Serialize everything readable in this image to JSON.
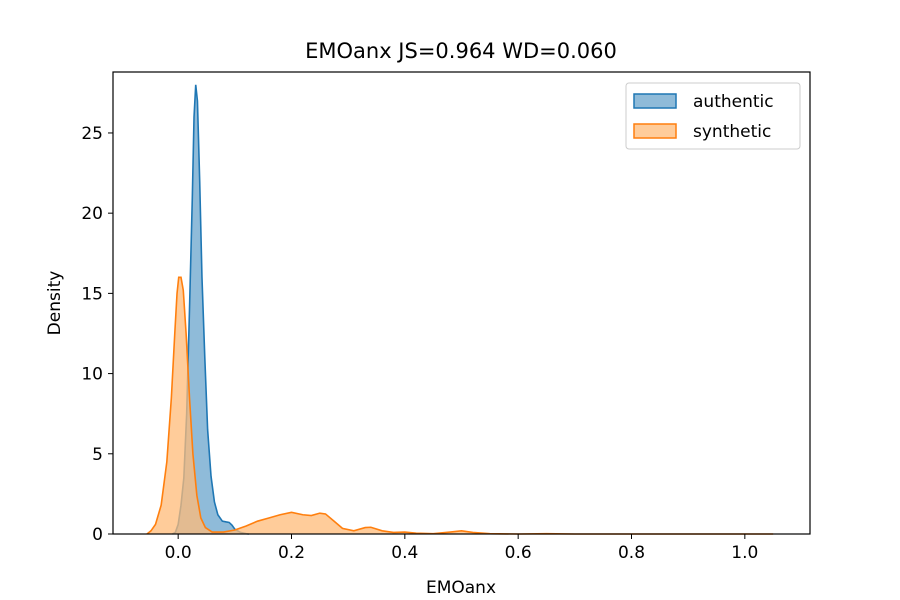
{
  "chart_data": {
    "type": "area",
    "title": "EMOanx  JS=0.964  WD=0.060",
    "xlabel": "EMOanx",
    "ylabel": "Density",
    "xlim": [
      -0.115,
      1.115
    ],
    "ylim": [
      0,
      28.8
    ],
    "xticks": [
      0.0,
      0.2,
      0.4,
      0.6,
      0.8,
      1.0
    ],
    "xtick_labels": [
      "0.0",
      "0.2",
      "0.4",
      "0.6",
      "0.8",
      "1.0"
    ],
    "yticks": [
      0,
      5,
      10,
      15,
      20,
      25
    ],
    "ytick_labels": [
      "0",
      "5",
      "10",
      "15",
      "20",
      "25"
    ],
    "grid": false,
    "legend_position": "top-right",
    "series": [
      {
        "name": "authentic",
        "color": "#1f77b4",
        "fill": "#1f77b4",
        "fill_opacity": 0.5,
        "points": [
          [
            -0.01,
            0
          ],
          [
            -0.005,
            0.1
          ],
          [
            0.0,
            0.6
          ],
          [
            0.005,
            1.8
          ],
          [
            0.01,
            3.5
          ],
          [
            0.015,
            7.5
          ],
          [
            0.02,
            14.0
          ],
          [
            0.025,
            21.0
          ],
          [
            0.028,
            26.0
          ],
          [
            0.031,
            28.0
          ],
          [
            0.034,
            27.0
          ],
          [
            0.038,
            22.0
          ],
          [
            0.042,
            16.0
          ],
          [
            0.047,
            11.0
          ],
          [
            0.052,
            6.5
          ],
          [
            0.058,
            3.6
          ],
          [
            0.064,
            2.0
          ],
          [
            0.07,
            1.2
          ],
          [
            0.078,
            0.8
          ],
          [
            0.085,
            0.75
          ],
          [
            0.09,
            0.72
          ],
          [
            0.095,
            0.55
          ],
          [
            0.1,
            0.3
          ],
          [
            0.11,
            0.1
          ],
          [
            0.12,
            0.02
          ],
          [
            0.125,
            0
          ]
        ]
      },
      {
        "name": "synthetic",
        "color": "#ff7f0e",
        "fill": "#ffbb78",
        "fill_opacity": 0.75,
        "points": [
          [
            -0.055,
            0
          ],
          [
            -0.048,
            0.2
          ],
          [
            -0.04,
            0.6
          ],
          [
            -0.03,
            1.8
          ],
          [
            -0.02,
            4.5
          ],
          [
            -0.012,
            8.5
          ],
          [
            -0.006,
            12.5
          ],
          [
            -0.002,
            15.0
          ],
          [
            0.001,
            16.0
          ],
          [
            0.005,
            16.0
          ],
          [
            0.009,
            15.2
          ],
          [
            0.014,
            12.5
          ],
          [
            0.02,
            8.5
          ],
          [
            0.026,
            5.0
          ],
          [
            0.033,
            2.4
          ],
          [
            0.04,
            1.0
          ],
          [
            0.048,
            0.4
          ],
          [
            0.06,
            0.12
          ],
          [
            0.08,
            0.12
          ],
          [
            0.1,
            0.25
          ],
          [
            0.12,
            0.5
          ],
          [
            0.14,
            0.8
          ],
          [
            0.16,
            1.0
          ],
          [
            0.18,
            1.2
          ],
          [
            0.2,
            1.35
          ],
          [
            0.22,
            1.2
          ],
          [
            0.235,
            1.15
          ],
          [
            0.25,
            1.3
          ],
          [
            0.26,
            1.25
          ],
          [
            0.275,
            0.8
          ],
          [
            0.29,
            0.35
          ],
          [
            0.31,
            0.2
          ],
          [
            0.33,
            0.4
          ],
          [
            0.34,
            0.42
          ],
          [
            0.36,
            0.2
          ],
          [
            0.38,
            0.1
          ],
          [
            0.4,
            0.12
          ],
          [
            0.42,
            0.05
          ],
          [
            0.45,
            0.02
          ],
          [
            0.48,
            0.12
          ],
          [
            0.5,
            0.2
          ],
          [
            0.52,
            0.1
          ],
          [
            0.55,
            0.02
          ],
          [
            0.6,
            0.0
          ],
          [
            0.65,
            0.02
          ],
          [
            0.7,
            0.0
          ],
          [
            0.75,
            0.0
          ],
          [
            0.85,
            0.0
          ],
          [
            0.95,
            0.0
          ],
          [
            1.05,
            0.0
          ]
        ]
      }
    ]
  }
}
